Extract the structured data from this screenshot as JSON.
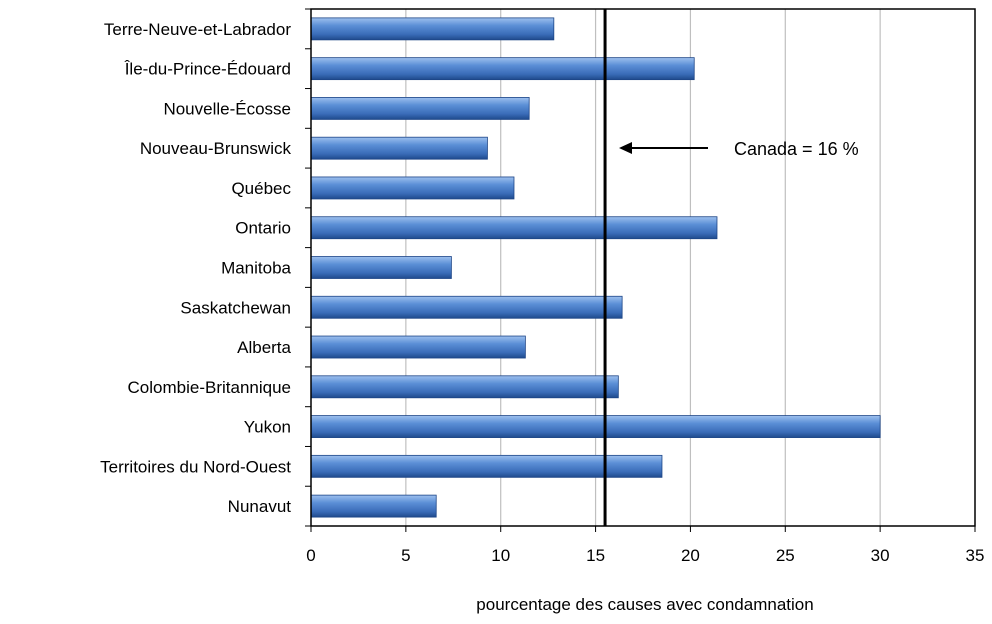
{
  "chart_data": {
    "type": "bar",
    "orientation": "horizontal",
    "categories": [
      "Terre-Neuve-et-Labrador",
      "Île-du-Prince-Édouard",
      "Nouvelle-Écosse",
      "Nouveau-Brunswick",
      "Québec",
      "Ontario",
      "Manitoba",
      "Saskatchewan",
      "Alberta",
      "Colombie-Britannique",
      "Yukon",
      "Territoires du Nord-Ouest",
      "Nunavut"
    ],
    "values": [
      12.8,
      20.2,
      11.5,
      9.3,
      10.7,
      21.4,
      7.4,
      16.4,
      11.3,
      16.2,
      30.0,
      18.5,
      6.6
    ],
    "xlabel": "pourcentage des causes avec condamnation",
    "ylabel": "",
    "xlim": [
      0,
      35
    ],
    "xticks": [
      0,
      5,
      10,
      15,
      20,
      25,
      30,
      35
    ],
    "grid": "vertical",
    "bar_color": "#4a7fc4",
    "reference_line": {
      "value": 15.5
    },
    "annotation": {
      "text": "Canada = 16 %",
      "arrow": "left"
    }
  }
}
